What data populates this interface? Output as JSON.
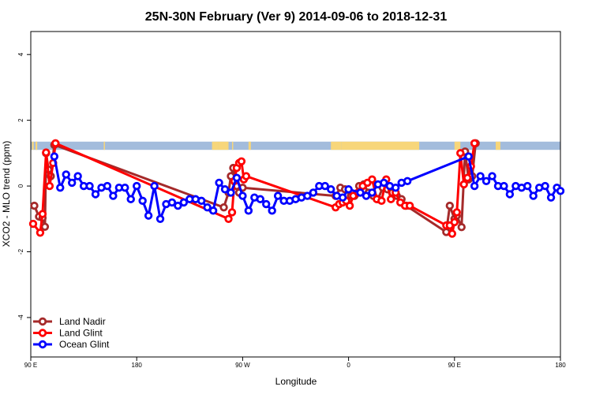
{
  "chart_data": {
    "type": "line",
    "title": "25N-30N February (Ver 9)   2014-09-06 to 2018-12-31",
    "xlabel": "Longitude",
    "ylabel": "XCO2 - MLO trend (ppm)",
    "xlim": [
      90,
      540
    ],
    "ylim": [
      -5.2,
      4.7
    ],
    "x_ticks": [
      {
        "value": 90,
        "label": "90 E"
      },
      {
        "value": 180,
        "label": "180"
      },
      {
        "value": 270,
        "label": "90 W"
      },
      {
        "value": 360,
        "label": "0"
      },
      {
        "value": 450,
        "label": "90 E"
      },
      {
        "value": 540,
        "label": "180"
      }
    ],
    "y_ticks": [
      {
        "value": -4,
        "label": "-4"
      },
      {
        "value": -2,
        "label": "-2"
      },
      {
        "value": 0,
        "label": "0"
      },
      {
        "value": 2,
        "label": "2"
      },
      {
        "value": 4,
        "label": "4"
      }
    ],
    "land_band": {
      "y_range": [
        1.1,
        1.35
      ],
      "ocean_color": "#a3bcdc",
      "land_color": "#f7d67a",
      "land_segments": [
        [
          91,
          92.5
        ],
        [
          94,
          95.5
        ],
        [
          152,
          153
        ],
        [
          244,
          249
        ],
        [
          249,
          258
        ],
        [
          261,
          262
        ],
        [
          275,
          277
        ],
        [
          345,
          354
        ],
        [
          354,
          420
        ],
        [
          450,
          455
        ],
        [
          485,
          489
        ]
      ]
    },
    "legend_position": "bottom-left",
    "series": [
      {
        "name": "Land Nadir",
        "color": "#a52a2a",
        "points": [
          [
            93,
            -0.6
          ],
          [
            97,
            -0.93
          ],
          [
            100,
            -0.97
          ],
          [
            102,
            -1.24
          ],
          [
            103,
            1.0
          ],
          [
            105,
            0.5
          ],
          [
            107,
            0.3
          ],
          [
            110,
            1.25
          ],
          [
            254,
            -0.65
          ],
          [
            258,
            -0.2
          ],
          [
            260,
            0.3
          ],
          [
            262,
            0.55
          ],
          [
            264,
            0.1
          ],
          [
            265,
            0.0
          ],
          [
            267,
            -0.2
          ],
          [
            270,
            -0.05
          ],
          [
            349,
            -0.3
          ],
          [
            353,
            -0.05
          ],
          [
            357,
            -0.1
          ],
          [
            362,
            -0.3
          ],
          [
            365,
            -0.3
          ],
          [
            369,
            0.0
          ],
          [
            373,
            0.05
          ],
          [
            377,
            -0.2
          ],
          [
            381,
            -0.3
          ],
          [
            385,
            -0.4
          ],
          [
            389,
            -0.05
          ],
          [
            393,
            -0.1
          ],
          [
            397,
            -0.2
          ],
          [
            401,
            -0.3
          ],
          [
            405,
            -0.4
          ],
          [
            409,
            -0.6
          ],
          [
            443,
            -1.4
          ],
          [
            446,
            -0.6
          ],
          [
            450,
            -1.0
          ],
          [
            452,
            -0.9
          ],
          [
            456,
            -1.25
          ],
          [
            459,
            1.05
          ],
          [
            462,
            0.2
          ],
          [
            465,
            0.3
          ],
          [
            468,
            1.3
          ]
        ]
      },
      {
        "name": "Land Glint",
        "color": "#ff0000",
        "points": [
          [
            92,
            -1.15
          ],
          [
            98,
            -1.42
          ],
          [
            100,
            -0.85
          ],
          [
            103,
            1.02
          ],
          [
            106,
            0.0
          ],
          [
            109,
            0.7
          ],
          [
            111,
            1.3
          ],
          [
            258,
            -1.0
          ],
          [
            261,
            -0.8
          ],
          [
            263,
            0.15
          ],
          [
            265,
            0.55
          ],
          [
            267,
            0.7
          ],
          [
            269,
            0.75
          ],
          [
            271,
            0.2
          ],
          [
            273,
            0.3
          ],
          [
            349,
            -0.65
          ],
          [
            352,
            -0.55
          ],
          [
            355,
            -0.5
          ],
          [
            358,
            -0.45
          ],
          [
            361,
            -0.6
          ],
          [
            364,
            -0.3
          ],
          [
            368,
            -0.2
          ],
          [
            372,
            0.0
          ],
          [
            376,
            0.1
          ],
          [
            380,
            0.2
          ],
          [
            384,
            -0.4
          ],
          [
            388,
            -0.45
          ],
          [
            392,
            0.2
          ],
          [
            396,
            -0.4
          ],
          [
            400,
            -0.2
          ],
          [
            404,
            -0.5
          ],
          [
            408,
            -0.6
          ],
          [
            412,
            -0.6
          ],
          [
            443,
            -1.2
          ],
          [
            446,
            -1.2
          ],
          [
            448,
            -1.45
          ],
          [
            450,
            -1.1
          ],
          [
            452,
            -0.8
          ],
          [
            455,
            1.0
          ],
          [
            458,
            0.05
          ],
          [
            461,
            0.25
          ],
          [
            464,
            0.6
          ],
          [
            467,
            1.3
          ]
        ]
      },
      {
        "name": "Ocean Glint",
        "color": "#0000ff",
        "points": [
          [
            110,
            0.9
          ],
          [
            115,
            -0.05
          ],
          [
            120,
            0.35
          ],
          [
            125,
            0.1
          ],
          [
            130,
            0.3
          ],
          [
            135,
            0.0
          ],
          [
            140,
            0.0
          ],
          [
            145,
            -0.25
          ],
          [
            150,
            -0.05
          ],
          [
            155,
            0.0
          ],
          [
            160,
            -0.3
          ],
          [
            165,
            -0.05
          ],
          [
            170,
            -0.05
          ],
          [
            175,
            -0.4
          ],
          [
            180,
            0.0
          ],
          [
            185,
            -0.45
          ],
          [
            190,
            -0.9
          ],
          [
            195,
            0.0
          ],
          [
            200,
            -1.0
          ],
          [
            205,
            -0.55
          ],
          [
            210,
            -0.5
          ],
          [
            215,
            -0.6
          ],
          [
            220,
            -0.5
          ],
          [
            225,
            -0.4
          ],
          [
            230,
            -0.4
          ],
          [
            235,
            -0.45
          ],
          [
            240,
            -0.65
          ],
          [
            245,
            -0.75
          ],
          [
            250,
            0.1
          ],
          [
            255,
            -0.1
          ],
          [
            260,
            -0.2
          ],
          [
            265,
            0.25
          ],
          [
            270,
            -0.3
          ],
          [
            275,
            -0.75
          ],
          [
            280,
            -0.35
          ],
          [
            285,
            -0.4
          ],
          [
            290,
            -0.55
          ],
          [
            295,
            -0.75
          ],
          [
            300,
            -0.3
          ],
          [
            305,
            -0.45
          ],
          [
            310,
            -0.45
          ],
          [
            315,
            -0.4
          ],
          [
            320,
            -0.35
          ],
          [
            325,
            -0.3
          ],
          [
            330,
            -0.2
          ],
          [
            335,
            0.0
          ],
          [
            340,
            0.0
          ],
          [
            345,
            -0.1
          ],
          [
            350,
            -0.3
          ],
          [
            355,
            -0.35
          ],
          [
            360,
            -0.1
          ],
          [
            370,
            -0.2
          ],
          [
            375,
            -0.3
          ],
          [
            380,
            -0.2
          ],
          [
            385,
            0.05
          ],
          [
            390,
            0.1
          ],
          [
            395,
            0.0
          ],
          [
            400,
            -0.05
          ],
          [
            405,
            0.1
          ],
          [
            410,
            0.15
          ],
          [
            462,
            0.9
          ],
          [
            467,
            0.0
          ],
          [
            472,
            0.3
          ],
          [
            477,
            0.15
          ],
          [
            482,
            0.3
          ],
          [
            487,
            0.0
          ],
          [
            492,
            0.0
          ],
          [
            497,
            -0.25
          ],
          [
            502,
            0.0
          ],
          [
            507,
            -0.05
          ],
          [
            512,
            0.0
          ],
          [
            517,
            -0.3
          ],
          [
            522,
            -0.05
          ],
          [
            527,
            0.0
          ],
          [
            532,
            -0.35
          ],
          [
            537,
            -0.05
          ],
          [
            540,
            -0.15
          ]
        ]
      }
    ]
  }
}
